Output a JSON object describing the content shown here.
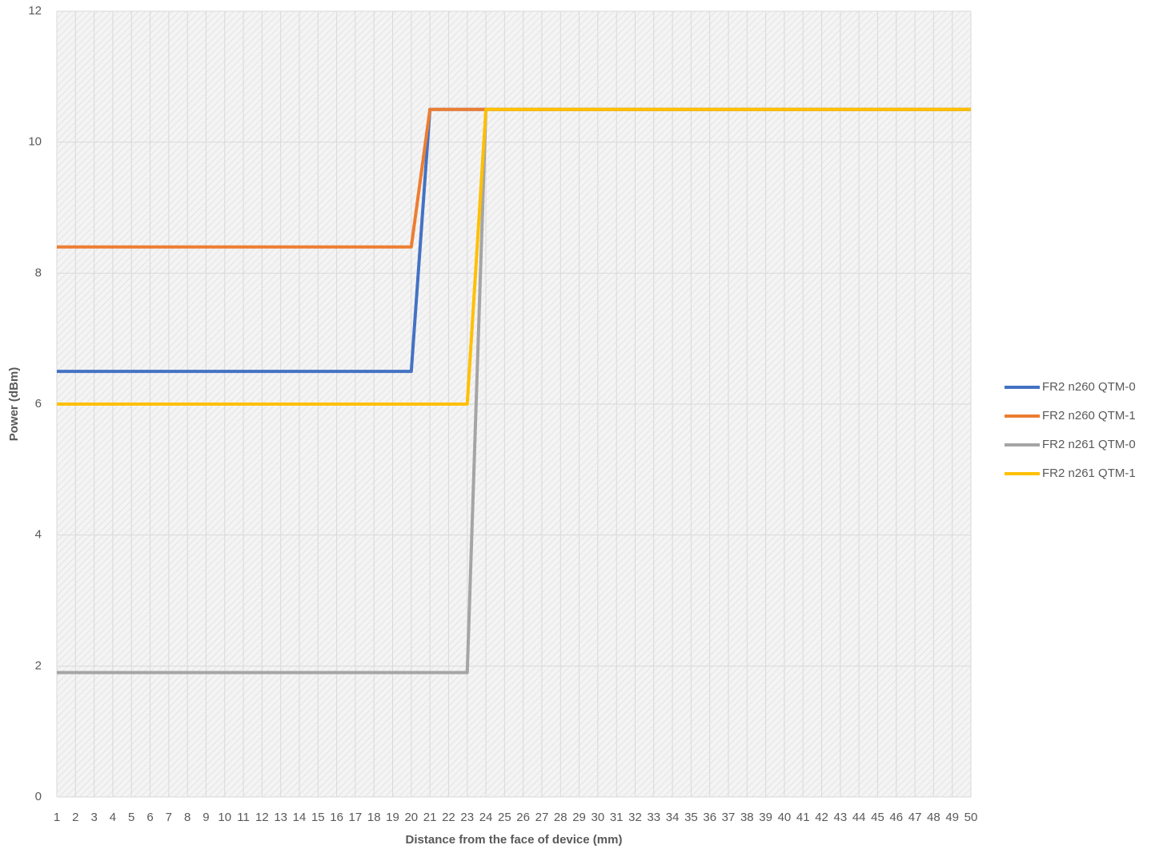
{
  "chart_data": {
    "type": "line",
    "x_label": "Distance from the face of device (mm)",
    "y_label": "Power (dBm)",
    "x": [
      1,
      2,
      3,
      4,
      5,
      6,
      7,
      8,
      9,
      10,
      11,
      12,
      13,
      14,
      15,
      16,
      17,
      18,
      19,
      20,
      21,
      22,
      23,
      24,
      25,
      26,
      27,
      28,
      29,
      30,
      31,
      32,
      33,
      34,
      35,
      36,
      37,
      38,
      39,
      40,
      41,
      42,
      43,
      44,
      45,
      46,
      47,
      48,
      49,
      50
    ],
    "xlim": [
      1,
      50
    ],
    "xticks": [
      1,
      2,
      3,
      4,
      5,
      6,
      7,
      8,
      9,
      10,
      11,
      12,
      13,
      14,
      15,
      16,
      17,
      18,
      19,
      20,
      21,
      22,
      23,
      24,
      25,
      26,
      27,
      28,
      29,
      30,
      31,
      32,
      33,
      34,
      35,
      36,
      37,
      38,
      39,
      40,
      41,
      42,
      43,
      44,
      45,
      46,
      47,
      48,
      49,
      50
    ],
    "ylim": [
      0,
      12
    ],
    "yticks": [
      0,
      2,
      4,
      6,
      8,
      10,
      12
    ],
    "grid": true,
    "legend": "right",
    "series": [
      {
        "name": "FR2 n260 QTM-0",
        "color": "#4472c4",
        "values": [
          6.5,
          6.5,
          6.5,
          6.5,
          6.5,
          6.5,
          6.5,
          6.5,
          6.5,
          6.5,
          6.5,
          6.5,
          6.5,
          6.5,
          6.5,
          6.5,
          6.5,
          6.5,
          6.5,
          6.5,
          10.5,
          10.5,
          10.5,
          10.5,
          10.5,
          10.5,
          10.5,
          10.5,
          10.5,
          10.5,
          10.5,
          10.5,
          10.5,
          10.5,
          10.5,
          10.5,
          10.5,
          10.5,
          10.5,
          10.5,
          10.5,
          10.5,
          10.5,
          10.5,
          10.5,
          10.5,
          10.5,
          10.5,
          10.5,
          10.5
        ]
      },
      {
        "name": "FR2 n260 QTM-1",
        "color": "#ed7d31",
        "values": [
          8.4,
          8.4,
          8.4,
          8.4,
          8.4,
          8.4,
          8.4,
          8.4,
          8.4,
          8.4,
          8.4,
          8.4,
          8.4,
          8.4,
          8.4,
          8.4,
          8.4,
          8.4,
          8.4,
          8.4,
          10.5,
          10.5,
          10.5,
          10.5,
          10.5,
          10.5,
          10.5,
          10.5,
          10.5,
          10.5,
          10.5,
          10.5,
          10.5,
          10.5,
          10.5,
          10.5,
          10.5,
          10.5,
          10.5,
          10.5,
          10.5,
          10.5,
          10.5,
          10.5,
          10.5,
          10.5,
          10.5,
          10.5,
          10.5,
          10.5
        ]
      },
      {
        "name": "FR2 n261 QTM-0",
        "color": "#a5a5a5",
        "values": [
          1.9,
          1.9,
          1.9,
          1.9,
          1.9,
          1.9,
          1.9,
          1.9,
          1.9,
          1.9,
          1.9,
          1.9,
          1.9,
          1.9,
          1.9,
          1.9,
          1.9,
          1.9,
          1.9,
          1.9,
          1.9,
          1.9,
          1.9,
          10.5,
          10.5,
          10.5,
          10.5,
          10.5,
          10.5,
          10.5,
          10.5,
          10.5,
          10.5,
          10.5,
          10.5,
          10.5,
          10.5,
          10.5,
          10.5,
          10.5,
          10.5,
          10.5,
          10.5,
          10.5,
          10.5,
          10.5,
          10.5,
          10.5,
          10.5,
          10.5
        ]
      },
      {
        "name": "FR2 n261 QTM-1",
        "color": "#ffc000",
        "values": [
          6,
          6,
          6,
          6,
          6,
          6,
          6,
          6,
          6,
          6,
          6,
          6,
          6,
          6,
          6,
          6,
          6,
          6,
          6,
          6,
          6,
          6,
          6,
          10.5,
          10.5,
          10.5,
          10.5,
          10.5,
          10.5,
          10.5,
          10.5,
          10.5,
          10.5,
          10.5,
          10.5,
          10.5,
          10.5,
          10.5,
          10.5,
          10.5,
          10.5,
          10.5,
          10.5,
          10.5,
          10.5,
          10.5,
          10.5,
          10.5,
          10.5,
          10.5
        ]
      }
    ]
  }
}
